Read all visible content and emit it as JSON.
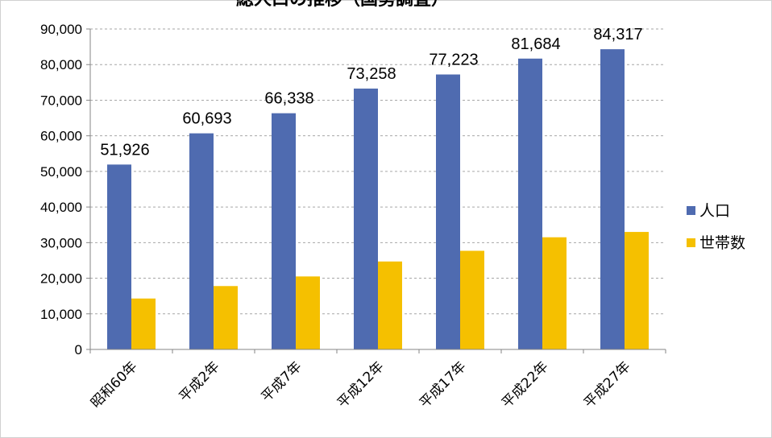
{
  "chart_data": {
    "type": "bar",
    "title": "総人口の推移（国勢調査）",
    "categories": [
      "昭和60年",
      "平成2年",
      "平成7年",
      "平成12年",
      "平成17年",
      "平成22年",
      "平成27年"
    ],
    "series": [
      {
        "name": "人口",
        "color": "#4f6bb0",
        "values": [
          51926,
          60693,
          66338,
          73258,
          77223,
          81684,
          84317
        ],
        "labels": [
          "51,926",
          "60,693",
          "66,338",
          "73,258",
          "77,223",
          "81,684",
          "84,317"
        ]
      },
      {
        "name": "世帯数",
        "color": "#f5c000",
        "values": [
          14300,
          17800,
          20500,
          24700,
          27700,
          31500,
          33000
        ]
      }
    ],
    "ylim": [
      0,
      90000
    ],
    "yticks": [
      0,
      10000,
      20000,
      30000,
      40000,
      50000,
      60000,
      70000,
      80000,
      90000
    ],
    "ytick_labels": [
      "0",
      "10,000",
      "20,000",
      "30,000",
      "40,000",
      "50,000",
      "60,000",
      "70,000",
      "80,000",
      "90,000"
    ],
    "grid": true,
    "legend_position": "right"
  }
}
